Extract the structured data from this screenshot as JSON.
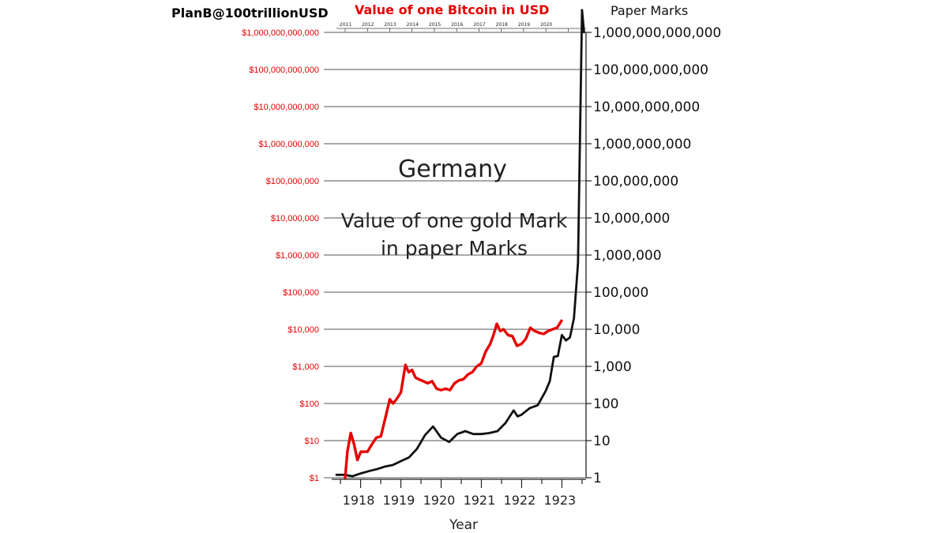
{
  "header": {
    "author": "PlanB@100trillionUSD",
    "bitcoin_title": "Value of one Bitcoin in USD",
    "right_axis_title": "Paper Marks"
  },
  "annotations": {
    "country": "Germany",
    "line1": "Value of one gold Mark",
    "line2": "in paper Marks"
  },
  "colors": {
    "bitcoin": "#e60000",
    "marks": "#111111",
    "grid": "#555555",
    "left_labels": "#e60000"
  },
  "chart_data": {
    "type": "line",
    "scale": "log",
    "ylim": [
      1,
      1000000000000
    ],
    "xlabel": "Year",
    "ylabel_left": "",
    "ylabel_right": "Paper Marks",
    "grid": "horizontal",
    "left_tick_labels": [
      "$1",
      "$10",
      "$100",
      "$1,000",
      "$10,000",
      "$100,000",
      "$1,000,000",
      "$10,000,000",
      "$100,000,000",
      "$1,000,000,000",
      "$10,000,000,000",
      "$100,000,000,000",
      "$1,000,000,000,000"
    ],
    "right_tick_labels": [
      "1",
      "10",
      "100",
      "1,000",
      "10,000",
      "100,000",
      "1,000,000",
      "10,000,000",
      "100,000,000",
      "1,000,000,000",
      "10,000,000,000",
      "100,000,000,000",
      "1,000,000,000,000"
    ],
    "x_bottom": {
      "labels": [
        "1918",
        "1919",
        "1920",
        "1921",
        "1922",
        "1923"
      ],
      "range": [
        1917.4,
        1923.6
      ]
    },
    "x_top": {
      "labels": [
        "2011",
        "2012",
        "2013",
        "2014",
        "2015",
        "2016",
        "2017",
        "2018",
        "2019",
        "2020"
      ],
      "range": [
        2011,
        2021.8
      ]
    },
    "series": [
      {
        "name": "Value of one Bitcoin in USD",
        "axis": "top",
        "color": "#e60000",
        "x": [
          2011.0,
          2011.1,
          2011.25,
          2011.4,
          2011.55,
          2011.7,
          2011.85,
          2012.0,
          2012.2,
          2012.4,
          2012.6,
          2012.8,
          2013.0,
          2013.15,
          2013.3,
          2013.5,
          2013.7,
          2013.85,
          2014.0,
          2014.15,
          2014.3,
          2014.5,
          2014.7,
          2014.9,
          2015.1,
          2015.3,
          2015.5,
          2015.7,
          2015.9,
          2016.1,
          2016.3,
          2016.5,
          2016.7,
          2016.9,
          2017.1,
          2017.3,
          2017.5,
          2017.65,
          2017.8,
          2017.95,
          2018.1,
          2018.3,
          2018.5,
          2018.7,
          2018.9,
          2019.1,
          2019.3,
          2019.5,
          2019.7,
          2019.9,
          2020.1,
          2020.3,
          2020.5,
          2020.7
        ],
        "y": [
          1,
          5,
          16,
          8,
          3,
          5,
          5,
          5,
          8,
          12,
          13,
          40,
          130,
          100,
          130,
          200,
          1100,
          700,
          800,
          500,
          450,
          400,
          350,
          400,
          250,
          230,
          250,
          230,
          350,
          420,
          450,
          600,
          700,
          1000,
          1200,
          2500,
          4000,
          7000,
          14000,
          9000,
          10000,
          7000,
          6500,
          3600,
          4000,
          5500,
          11000,
          9000,
          8000,
          7500,
          9000,
          10000,
          11000,
          17000
        ]
      },
      {
        "name": "Value of one gold Mark in paper Marks",
        "axis": "bottom",
        "color": "#111111",
        "x": [
          1917.4,
          1917.6,
          1917.8,
          1918.0,
          1918.2,
          1918.4,
          1918.6,
          1918.8,
          1919.0,
          1919.2,
          1919.4,
          1919.6,
          1919.8,
          1920.0,
          1920.2,
          1920.4,
          1920.6,
          1920.8,
          1921.0,
          1921.2,
          1921.4,
          1921.6,
          1921.8,
          1921.9,
          1922.0,
          1922.2,
          1922.4,
          1922.6,
          1922.7,
          1922.8,
          1922.9,
          1923.0,
          1923.1,
          1923.2,
          1923.3,
          1923.4,
          1923.5,
          1923.55
        ],
        "y": [
          1.2,
          1.2,
          1.1,
          1.3,
          1.5,
          1.7,
          2.0,
          2.2,
          2.8,
          3.5,
          6,
          14,
          24,
          12,
          9.2,
          15,
          18,
          15,
          15,
          16,
          18,
          30,
          65,
          45,
          50,
          75,
          90,
          220,
          400,
          1800,
          1900,
          7000,
          5000,
          6000,
          20000,
          600000,
          4000000000000,
          1000000000000
        ]
      }
    ]
  }
}
